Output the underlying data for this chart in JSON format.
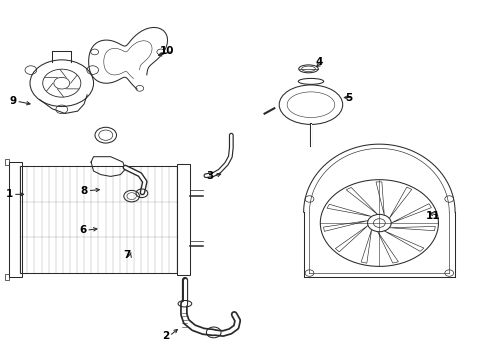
{
  "bg_color": "#ffffff",
  "line_color": "#2a2a2a",
  "label_color": "#000000",
  "lw": 0.75,
  "parts": [
    {
      "id": 1,
      "label": "1"
    },
    {
      "id": 2,
      "label": "2"
    },
    {
      "id": 3,
      "label": "3"
    },
    {
      "id": 4,
      "label": "4"
    },
    {
      "id": 5,
      "label": "5"
    },
    {
      "id": 6,
      "label": "6"
    },
    {
      "id": 7,
      "label": "7"
    },
    {
      "id": 8,
      "label": "8"
    },
    {
      "id": 9,
      "label": "9"
    },
    {
      "id": 10,
      "label": "10"
    },
    {
      "id": 11,
      "label": "11"
    }
  ],
  "label_positions": {
    "1": [
      0.025,
      0.46,
      0.055,
      0.46
    ],
    "2": [
      0.345,
      0.065,
      0.368,
      0.09
    ],
    "3": [
      0.435,
      0.51,
      0.458,
      0.52
    ],
    "4": [
      0.66,
      0.83,
      0.64,
      0.81
    ],
    "5": [
      0.72,
      0.73,
      0.695,
      0.73
    ],
    "6": [
      0.175,
      0.36,
      0.205,
      0.365
    ],
    "7": [
      0.265,
      0.29,
      0.268,
      0.305
    ],
    "8": [
      0.178,
      0.47,
      0.21,
      0.474
    ],
    "9": [
      0.032,
      0.72,
      0.068,
      0.71
    ],
    "10": [
      0.355,
      0.86,
      0.315,
      0.845
    ],
    "11": [
      0.9,
      0.4,
      0.87,
      0.41
    ]
  }
}
